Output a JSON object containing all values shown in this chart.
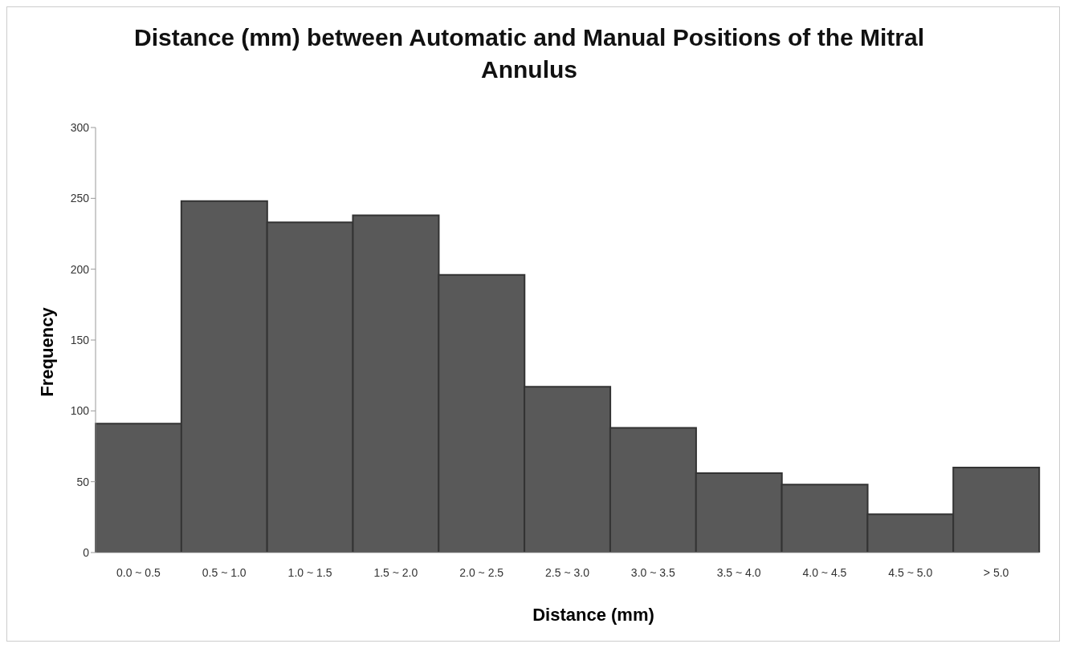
{
  "chart_data": {
    "type": "bar",
    "title": "Distance (mm) between Automatic and Manual Positions of the Mitral Annulus",
    "xlabel": "Distance (mm)",
    "ylabel": "Frequency",
    "categories": [
      "0.0 ~ 0.5",
      "0.5 ~ 1.0",
      "1.0 ~ 1.5",
      "1.5 ~ 2.0",
      "2.0 ~ 2.5",
      "2.5 ~ 3.0",
      "3.0 ~ 3.5",
      "3.5 ~ 4.0",
      "4.0 ~ 4.5",
      "4.5 ~ 5.0",
      "> 5.0"
    ],
    "values": [
      91,
      248,
      233,
      238,
      196,
      117,
      88,
      56,
      48,
      27,
      60
    ],
    "color": "#595959",
    "ylim": [
      0,
      300
    ],
    "yticks": [
      0,
      50,
      100,
      150,
      200,
      250,
      300
    ],
    "grid": false,
    "legend": false
  }
}
